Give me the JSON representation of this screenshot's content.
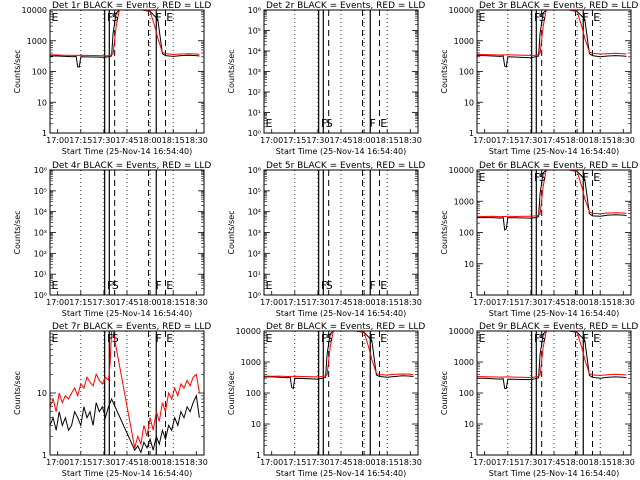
{
  "figure": {
    "xticks": [
      "17:00",
      "17:15",
      "17:30",
      "17:45",
      "18:00",
      "18:15",
      "18:30"
    ],
    "xlabel": "Start Time (25-Nov-14 16:54:40)",
    "ylabel": "Counts/sec",
    "marker_letters": [
      "E",
      "F",
      "S",
      "F",
      "E"
    ]
  },
  "colors": {
    "events": "#000000",
    "lld": "#ff0000",
    "axes": "#000000"
  },
  "chart_data": [
    {
      "type": "line",
      "title": "Det 1r BLACK = Events, RED = LLD",
      "xrange_min": [
        -5,
        95
      ],
      "yscale": "log",
      "ylim": [
        1,
        10000
      ],
      "yticks": [
        "1",
        "10",
        "100",
        "1000",
        "10000"
      ],
      "series": [
        {
          "name": "Events",
          "x": [
            -5,
            0,
            5,
            10,
            12,
            13,
            14,
            15,
            30,
            33,
            34,
            35,
            36,
            38,
            40,
            45,
            50,
            55,
            60,
            65,
            68,
            70,
            75,
            80,
            85,
            90,
            92
          ],
          "y": [
            320,
            320,
            310,
            300,
            310,
            140,
            140,
            300,
            290,
            300,
            310,
            320,
            1800,
            8000,
            10000,
            10000,
            10000,
            10000,
            9000,
            5000,
            380,
            330,
            310,
            330,
            340,
            330,
            320
          ]
        },
        {
          "name": "LLD",
          "x": [
            -5,
            0,
            5,
            10,
            15,
            20,
            25,
            30,
            33,
            34,
            35,
            36,
            38,
            40,
            45,
            50,
            55,
            60,
            63,
            65,
            68,
            70,
            75,
            80,
            85,
            90,
            92
          ],
          "y": [
            350,
            345,
            340,
            335,
            340,
            335,
            330,
            325,
            330,
            340,
            350,
            380,
            3000,
            10000,
            10000,
            10000,
            10000,
            9000,
            3000,
            1200,
            420,
            380,
            360,
            370,
            380,
            370,
            360
          ]
        }
      ],
      "markers": {
        "F": [
          33,
          62
        ],
        "S": 34.5,
        "E": [
          -5,
          68
        ]
      }
    },
    {
      "type": "line",
      "title": "Det 2r BLACK = Events, RED = LLD",
      "xrange_min": [
        -5,
        95
      ],
      "yscale": "log",
      "ylim": [
        1,
        1000000
      ],
      "yticks": [
        "10⁰",
        "10¹",
        "10²",
        "10³",
        "10⁴",
        "10⁵",
        "10⁶"
      ],
      "series": [],
      "markers": {
        "F": [
          33,
          62
        ],
        "S": 34.5,
        "E": [
          -5,
          68
        ]
      }
    },
    {
      "type": "line",
      "title": "Det 3r BLACK = Events, RED = LLD",
      "xrange_min": [
        -5,
        95
      ],
      "yscale": "log",
      "ylim": [
        1,
        10000
      ],
      "yticks": [
        "1",
        "10",
        "100",
        "1000",
        "10000"
      ],
      "series": [
        {
          "name": "Events",
          "x": [
            -5,
            0,
            5,
            10,
            12,
            13,
            14,
            15,
            30,
            33,
            34,
            35,
            36,
            38,
            40,
            45,
            50,
            55,
            60,
            65,
            68,
            70,
            75,
            80,
            85,
            90,
            92
          ],
          "y": [
            330,
            330,
            320,
            310,
            320,
            150,
            140,
            300,
            280,
            300,
            310,
            320,
            1800,
            8000,
            10000,
            10000,
            10000,
            10000,
            9000,
            5000,
            380,
            330,
            300,
            320,
            330,
            320,
            310
          ]
        },
        {
          "name": "LLD",
          "x": [
            -5,
            0,
            5,
            10,
            15,
            20,
            25,
            30,
            33,
            34,
            35,
            36,
            38,
            40,
            45,
            50,
            55,
            60,
            63,
            65,
            68,
            70,
            75,
            80,
            85,
            90,
            92
          ],
          "y": [
            360,
            355,
            350,
            345,
            350,
            345,
            340,
            335,
            340,
            350,
            360,
            390,
            3000,
            10000,
            10000,
            10000,
            10000,
            9000,
            3000,
            1200,
            430,
            390,
            370,
            380,
            390,
            380,
            370
          ]
        }
      ],
      "markers": {
        "F": [
          33,
          62
        ],
        "S": 34.5,
        "E": [
          -5,
          68
        ]
      }
    },
    {
      "type": "line",
      "title": "Det 4r BLACK = Events, RED = LLD",
      "xrange_min": [
        -5,
        95
      ],
      "yscale": "log",
      "ylim": [
        1,
        1000000
      ],
      "yticks": [
        "10⁰",
        "10¹",
        "10²",
        "10³",
        "10⁴",
        "10⁵",
        "10⁶"
      ],
      "series": [],
      "markers": {
        "F": [
          33,
          62
        ],
        "S": 34.5,
        "E": [
          -5,
          68
        ]
      }
    },
    {
      "type": "line",
      "title": "Det 5r BLACK = Events, RED = LLD",
      "xrange_min": [
        -5,
        95
      ],
      "yscale": "log",
      "ylim": [
        1,
        1000000
      ],
      "yticks": [
        "10⁰",
        "10¹",
        "10²",
        "10³",
        "10⁴",
        "10⁵",
        "10⁶"
      ],
      "series": [],
      "markers": {
        "F": [
          33,
          62
        ],
        "S": 34.5,
        "E": [
          -5,
          68
        ]
      }
    },
    {
      "type": "line",
      "title": "Det 6r BLACK = Events, RED = LLD",
      "xrange_min": [
        -5,
        95
      ],
      "yscale": "log",
      "ylim": [
        1,
        10000
      ],
      "yticks": [
        "1",
        "10",
        "100",
        "1000",
        "10000"
      ],
      "series": [
        {
          "name": "Events",
          "x": [
            -5,
            0,
            5,
            10,
            12,
            13,
            14,
            15,
            30,
            33,
            34,
            35,
            36,
            38,
            40,
            45,
            50,
            55,
            60,
            65,
            68,
            70,
            75,
            80,
            85,
            90,
            92
          ],
          "y": [
            300,
            300,
            300,
            290,
            300,
            120,
            130,
            300,
            290,
            300,
            310,
            320,
            1800,
            8000,
            10000,
            10000,
            10000,
            10000,
            9000,
            5000,
            400,
            340,
            330,
            360,
            370,
            360,
            350
          ]
        },
        {
          "name": "LLD",
          "x": [
            -5,
            0,
            5,
            10,
            15,
            20,
            25,
            30,
            33,
            34,
            35,
            36,
            38,
            40,
            45,
            50,
            55,
            60,
            63,
            65,
            68,
            70,
            75,
            80,
            85,
            90,
            92
          ],
          "y": [
            330,
            325,
            330,
            320,
            330,
            325,
            330,
            330,
            340,
            350,
            360,
            390,
            3000,
            10000,
            10000,
            10000,
            10000,
            9000,
            3000,
            1200,
            460,
            410,
            400,
            420,
            430,
            420,
            410
          ]
        }
      ],
      "markers": {
        "F": [
          33,
          62
        ],
        "S": 34.5,
        "E": [
          -5,
          68
        ]
      }
    },
    {
      "type": "line",
      "title": "Det 7r BLACK = Events, RED = LLD",
      "xrange_min": [
        -5,
        95
      ],
      "yscale": "log",
      "ylim": [
        1,
        100
      ],
      "yticks": [
        "1",
        "10"
      ],
      "series": [
        {
          "name": "Events",
          "x": [
            -5,
            -3,
            -1,
            1,
            3,
            5,
            7,
            9,
            11,
            13,
            15,
            17,
            19,
            21,
            23,
            25,
            27,
            29,
            31,
            33,
            35,
            50,
            52,
            54,
            56,
            58,
            60,
            62,
            64,
            66,
            68,
            70,
            72,
            74,
            76,
            78,
            80,
            82,
            84,
            86,
            88,
            90,
            92
          ],
          "y": [
            3,
            4,
            2.5,
            5,
            3,
            4,
            2.5,
            3,
            5,
            4,
            3,
            6,
            4,
            5,
            3,
            7,
            5,
            6,
            4,
            6,
            8,
            1.2,
            1.4,
            1.1,
            1.6,
            1.3,
            1.8,
            1.2,
            2,
            1.5,
            2.5,
            1.8,
            3,
            2.5,
            4,
            3,
            5,
            4,
            6,
            5,
            7,
            9,
            4
          ]
        },
        {
          "name": "LLD",
          "x": [
            -5,
            -3,
            -1,
            1,
            3,
            5,
            7,
            9,
            11,
            13,
            15,
            17,
            19,
            21,
            23,
            25,
            27,
            29,
            31,
            33,
            34,
            35,
            36,
            50,
            52,
            54,
            56,
            58,
            60,
            62,
            64,
            66,
            68,
            70,
            72,
            74,
            76,
            78,
            80,
            82,
            84,
            86,
            88,
            90,
            92
          ],
          "y": [
            6,
            8,
            5,
            10,
            7,
            9,
            8,
            10,
            12,
            9,
            14,
            12,
            18,
            15,
            13,
            20,
            16,
            14,
            18,
            16,
            30,
            100,
            100,
            1.3,
            2,
            1.5,
            3,
            2,
            4,
            2.5,
            5,
            3.5,
            7,
            5,
            10,
            8,
            12,
            9,
            14,
            12,
            16,
            13,
            18,
            20,
            10
          ]
        }
      ],
      "markers": {
        "F": [
          33,
          62
        ],
        "S": 34.5,
        "E": [
          -5,
          68
        ]
      }
    },
    {
      "type": "line",
      "title": "Det 8r BLACK = Events, RED = LLD",
      "xrange_min": [
        -5,
        95
      ],
      "yscale": "log",
      "ylim": [
        1,
        10000
      ],
      "yticks": [
        "1",
        "10",
        "100",
        "1000",
        "10000"
      ],
      "series": [
        {
          "name": "Events",
          "x": [
            -5,
            0,
            5,
            10,
            12,
            13,
            14,
            15,
            30,
            33,
            34,
            35,
            36,
            38,
            40,
            45,
            50,
            55,
            60,
            65,
            68,
            70,
            75,
            80,
            85,
            90,
            92
          ],
          "y": [
            330,
            330,
            320,
            310,
            320,
            150,
            140,
            300,
            280,
            300,
            310,
            320,
            1800,
            8000,
            10000,
            10000,
            10000,
            10000,
            9000,
            5000,
            380,
            340,
            320,
            340,
            360,
            350,
            340
          ]
        },
        {
          "name": "LLD",
          "x": [
            -5,
            0,
            5,
            10,
            15,
            20,
            25,
            30,
            33,
            34,
            35,
            36,
            38,
            40,
            45,
            50,
            55,
            60,
            63,
            65,
            68,
            70,
            75,
            80,
            85,
            90,
            92
          ],
          "y": [
            350,
            345,
            350,
            340,
            345,
            340,
            335,
            330,
            340,
            350,
            360,
            390,
            3000,
            10000,
            10000,
            10000,
            10000,
            9000,
            3000,
            1200,
            430,
            390,
            380,
            400,
            410,
            400,
            390
          ]
        }
      ],
      "markers": {
        "F": [
          33,
          62
        ],
        "S": 34.5,
        "E": [
          -5,
          68
        ]
      }
    },
    {
      "type": "line",
      "title": "Det 9r BLACK = Events, RED = LLD",
      "xrange_min": [
        -5,
        95
      ],
      "yscale": "log",
      "ylim": [
        1,
        10000
      ],
      "yticks": [
        "1",
        "10",
        "100",
        "1000",
        "10000"
      ],
      "series": [
        {
          "name": "Events",
          "x": [
            -5,
            0,
            5,
            10,
            12,
            13,
            14,
            15,
            30,
            33,
            34,
            35,
            36,
            38,
            40,
            45,
            50,
            55,
            60,
            65,
            68,
            70,
            75,
            80,
            85,
            90,
            92
          ],
          "y": [
            300,
            300,
            290,
            280,
            290,
            140,
            140,
            280,
            270,
            290,
            300,
            310,
            1800,
            8000,
            10000,
            10000,
            10000,
            10000,
            9000,
            5000,
            370,
            320,
            300,
            320,
            330,
            320,
            310
          ]
        },
        {
          "name": "LLD",
          "x": [
            -5,
            0,
            5,
            10,
            15,
            20,
            25,
            30,
            33,
            34,
            35,
            36,
            38,
            40,
            45,
            50,
            55,
            60,
            63,
            65,
            68,
            70,
            75,
            80,
            85,
            90,
            92
          ],
          "y": [
            340,
            335,
            330,
            325,
            330,
            325,
            320,
            315,
            330,
            340,
            350,
            380,
            3000,
            10000,
            10000,
            10000,
            10000,
            9000,
            3000,
            1200,
            420,
            380,
            370,
            390,
            400,
            390,
            380
          ]
        }
      ],
      "markers": {
        "F": [
          33,
          62
        ],
        "S": 34.5,
        "E": [
          -5,
          68
        ]
      }
    }
  ]
}
